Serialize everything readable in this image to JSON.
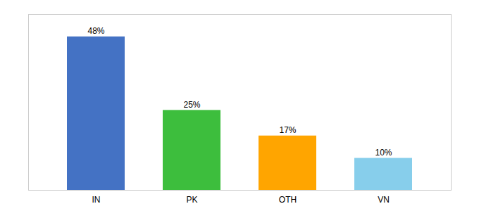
{
  "chart_data": {
    "type": "bar",
    "categories": [
      "IN",
      "PK",
      "OTH",
      "VN"
    ],
    "values": [
      48,
      25,
      17,
      10
    ],
    "value_labels": [
      "48%",
      "25%",
      "17%",
      "10%"
    ],
    "data_labels": true,
    "colors": [
      "#4472C4",
      "#3DBE3D",
      "#FFA500",
      "#87CEEB"
    ],
    "ylim": [
      0,
      55
    ],
    "tick_labels": "x",
    "grid": false
  }
}
